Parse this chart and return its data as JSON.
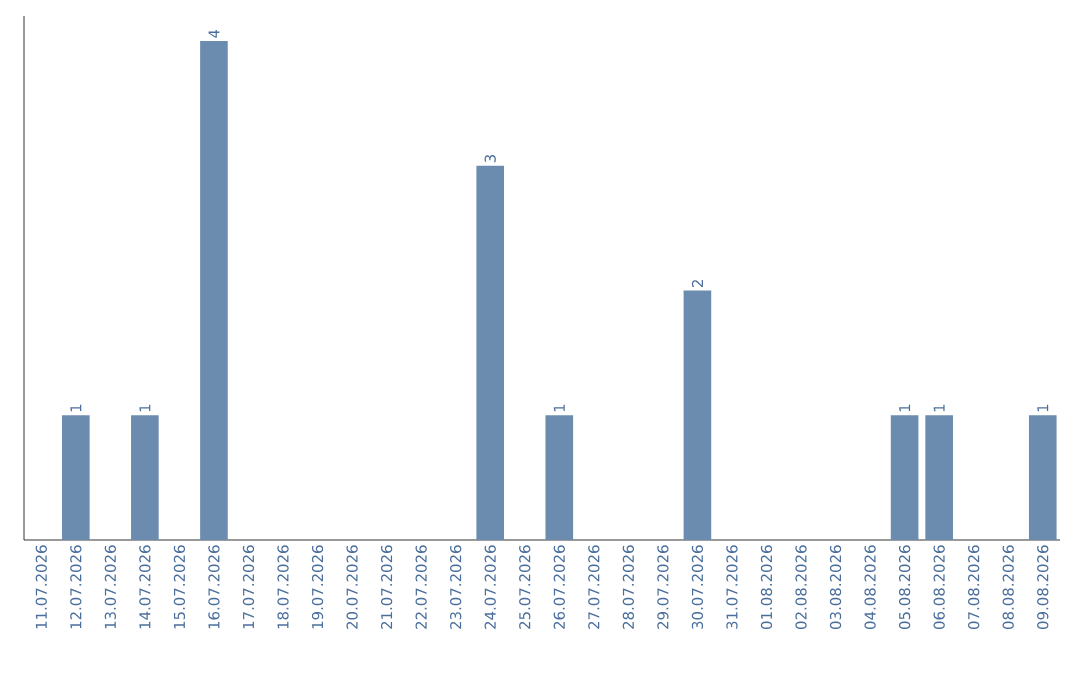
{
  "chart_data": {
    "type": "bar",
    "categories": [
      "11.07.2026",
      "12.07.2026",
      "13.07.2026",
      "14.07.2026",
      "15.07.2026",
      "16.07.2026",
      "17.07.2026",
      "18.07.2026",
      "19.07.2026",
      "20.07.2026",
      "21.07.2026",
      "22.07.2026",
      "23.07.2026",
      "24.07.2026",
      "25.07.2026",
      "26.07.2026",
      "27.07.2026",
      "28.07.2026",
      "29.07.2026",
      "30.07.2026",
      "31.07.2026",
      "01.08.2026",
      "02.08.2026",
      "03.08.2026",
      "04.08.2026",
      "05.08.2026",
      "06.08.2026",
      "07.08.2026",
      "08.08.2026",
      "09.08.2026"
    ],
    "values": [
      0,
      1,
      0,
      1,
      0,
      4,
      0,
      0,
      0,
      0,
      0,
      0,
      0,
      3,
      0,
      1,
      0,
      0,
      0,
      2,
      0,
      0,
      0,
      0,
      0,
      1,
      1,
      0,
      0,
      1
    ],
    "value_labels": [
      null,
      "1",
      null,
      "1",
      null,
      "4",
      null,
      null,
      null,
      null,
      null,
      null,
      null,
      "3",
      null,
      "1",
      null,
      null,
      null,
      "2",
      null,
      null,
      null,
      null,
      null,
      "1",
      "1",
      null,
      null,
      "1"
    ],
    "color": "#6b8cae",
    "grid": false
  }
}
